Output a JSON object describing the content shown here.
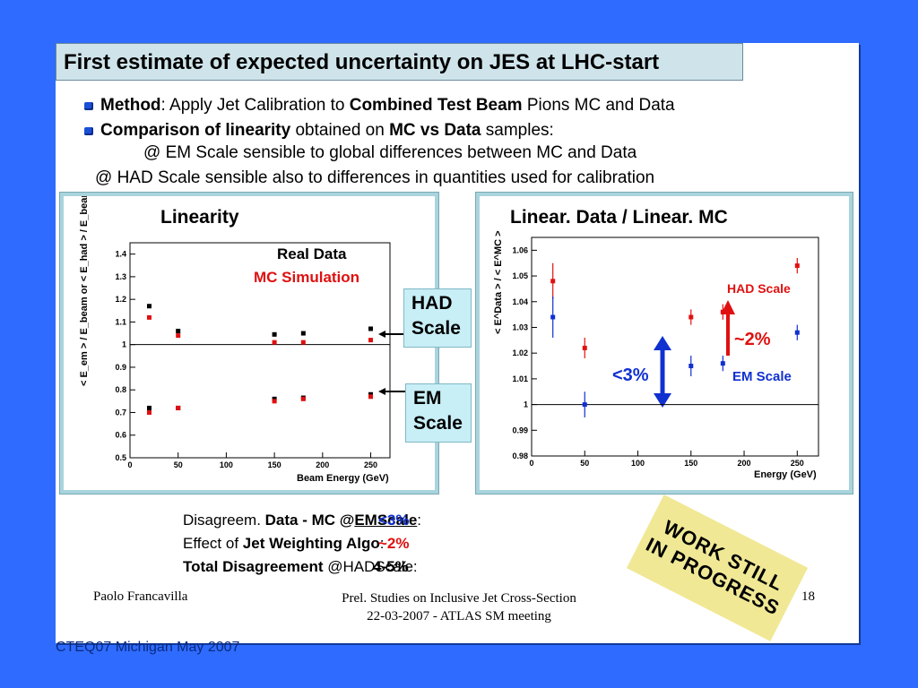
{
  "slide": {
    "title": "First estimate of expected uncertainty on JES at LHC-start",
    "bullets": [
      {
        "b1": "Method",
        "t1": ": Apply Jet Calibration to ",
        "b2": "Combined Test Beam",
        "t2": " Pions MC and Data"
      },
      {
        "b1": "Comparison of linearity",
        "t1": " obtained on ",
        "b2": "MC vs Data",
        "t2": " samples:"
      }
    ],
    "sub_line_1": "@ EM Scale sensible to global differences between MC and Data",
    "sub_line_2": "@ HAD Scale sensible also to differences in quantities used for calibration",
    "callout_had": {
      "l1": "HAD",
      "l2": "Scale"
    },
    "callout_em": {
      "l1": "EM",
      "l2": "Scale"
    },
    "summary": [
      {
        "pre": "Disagreem. ",
        "bold": "Data - MC @",
        "ul": "EMScale",
        "post": ":",
        "val": "<3%",
        "color": "#1030d0"
      },
      {
        "pre": "Effect of ",
        "bold": "Jet Weighting Algo",
        "ul": "",
        "post": ":",
        "val": "~2%",
        "color": "#e01010"
      },
      {
        "pre": "",
        "bold": "Total Disagreement",
        "ul": "",
        "post": " @HADScale:",
        "val": "4-5%",
        "color": "#000000"
      }
    ],
    "footer_left": "Paolo Francavilla",
    "footer_mid_1": "Prel. Studies on Inclusive Jet Cross-Section",
    "footer_mid_2": "22-03-2007 - ATLAS SM meeting",
    "page_number": "18",
    "stamp_1": "WORK STILL",
    "stamp_2": "IN PROGRESS",
    "conference": "CTEQ07 Michigan May 2007"
  },
  "chart_data": [
    {
      "type": "scatter",
      "title": "Linearity",
      "xlabel": "Beam Energy (GeV)",
      "ylabel": "< E_em > / E_beam  or  < E_had > / E_beam",
      "xlim": [
        0,
        270
      ],
      "ylim": [
        0.5,
        1.45
      ],
      "xticks": [
        "0",
        "50",
        "100",
        "150",
        "200",
        "250"
      ],
      "yticks": [
        "0.5",
        "0.6",
        "0.7",
        "0.8",
        "0.9",
        "1",
        "1.1",
        "1.2",
        "1.3",
        "1.4"
      ],
      "reference_line": 1,
      "legend": [
        "Real Data",
        "MC Simulation"
      ],
      "series": [
        {
          "name": "Real Data",
          "color": "#000000",
          "x": [
            20,
            50,
            150,
            180,
            250,
            20,
            50,
            150,
            180,
            250
          ],
          "y": [
            1.17,
            1.06,
            1.045,
            1.05,
            1.07,
            0.72,
            0.72,
            0.76,
            0.765,
            0.78
          ]
        },
        {
          "name": "MC Simulation",
          "color": "#e01010",
          "x": [
            20,
            50,
            150,
            180,
            250,
            20,
            50,
            150,
            180,
            250
          ],
          "y": [
            1.12,
            1.04,
            1.01,
            1.01,
            1.02,
            0.7,
            0.72,
            0.75,
            0.76,
            0.77
          ]
        }
      ]
    },
    {
      "type": "scatter",
      "title": "Linear. Data / Linear. MC",
      "xlabel": "Energy (GeV)",
      "ylabel": "< E^Data > / < E^MC >",
      "xlim": [
        0,
        270
      ],
      "ylim": [
        0.98,
        1.065
      ],
      "xticks": [
        "0",
        "50",
        "100",
        "150",
        "200",
        "250"
      ],
      "yticks": [
        "0.98",
        "0.99",
        "1",
        "1.01",
        "1.02",
        "1.03",
        "1.04",
        "1.05",
        "1.06"
      ],
      "reference_line": 1,
      "annotations": {
        "had": "HAD Scale",
        "em": "EM Scale",
        "em_diff": "<3%",
        "had_diff": "~2%"
      },
      "series": [
        {
          "name": "HAD Scale",
          "color": "#e01010",
          "x": [
            20,
            50,
            150,
            180,
            250
          ],
          "y": [
            1.048,
            1.022,
            1.034,
            1.036,
            1.054
          ],
          "err": [
            0.007,
            0.004,
            0.003,
            0.003,
            0.003
          ]
        },
        {
          "name": "EM Scale",
          "color": "#1030d0",
          "x": [
            20,
            50,
            150,
            180,
            250
          ],
          "y": [
            1.034,
            1.0,
            1.015,
            1.016,
            1.028
          ],
          "err": [
            0.008,
            0.005,
            0.004,
            0.003,
            0.003
          ]
        }
      ]
    }
  ]
}
